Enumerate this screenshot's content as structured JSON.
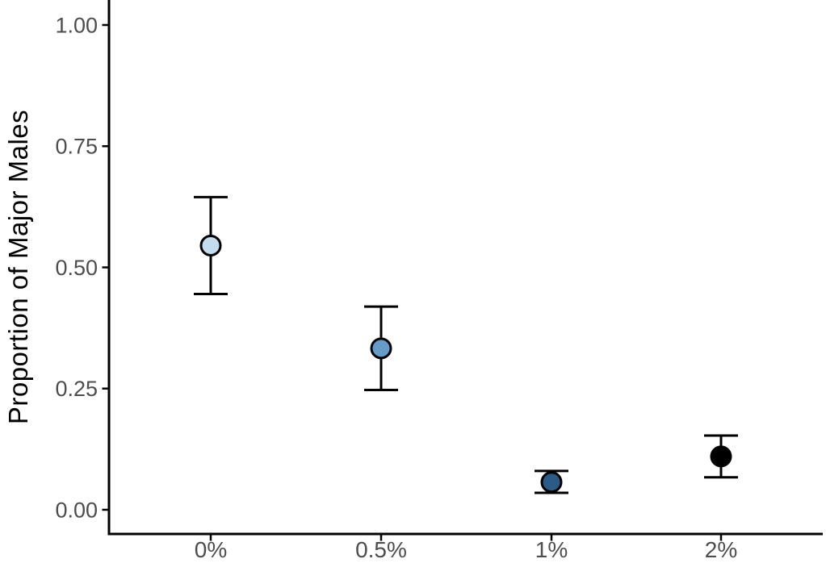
{
  "chart_data": {
    "type": "scatter",
    "title": "",
    "xlabel": "",
    "ylabel": "Proportion of Major Males",
    "x_tick_labels": [
      "0%",
      "0.5%",
      "1%",
      "2%"
    ],
    "y_tick_labels": [
      "0.00",
      "0.25",
      "0.50",
      "0.75",
      "1.00"
    ],
    "y_tick_values": [
      0,
      0.25,
      0.5,
      0.75,
      1.0
    ],
    "ylim": [
      0,
      1.0
    ],
    "grid": "off",
    "legend": "none",
    "series": [
      {
        "name": "proportion-major-males",
        "marker": "circle-with-error-bars",
        "points": [
          {
            "category": "0%",
            "mean": 0.545,
            "ci_low": 0.445,
            "ci_high": 0.645,
            "fill": "#c3ddef"
          },
          {
            "category": "0.5%",
            "mean": 0.333,
            "ci_low": 0.247,
            "ci_high": 0.419,
            "fill": "#669bc8"
          },
          {
            "category": "1%",
            "mean": 0.057,
            "ci_low": 0.035,
            "ci_high": 0.08,
            "fill": "#2b5c88"
          },
          {
            "category": "2%",
            "mean": 0.11,
            "ci_low": 0.067,
            "ci_high": 0.153,
            "fill": "#000000"
          }
        ]
      }
    ],
    "colors": {
      "background": "#ffffff",
      "axis_line": "#000000",
      "tick_label": "#4d4d4d",
      "axis_title": "#000000",
      "error_bar": "#000000",
      "point_stroke": "#000000"
    }
  }
}
